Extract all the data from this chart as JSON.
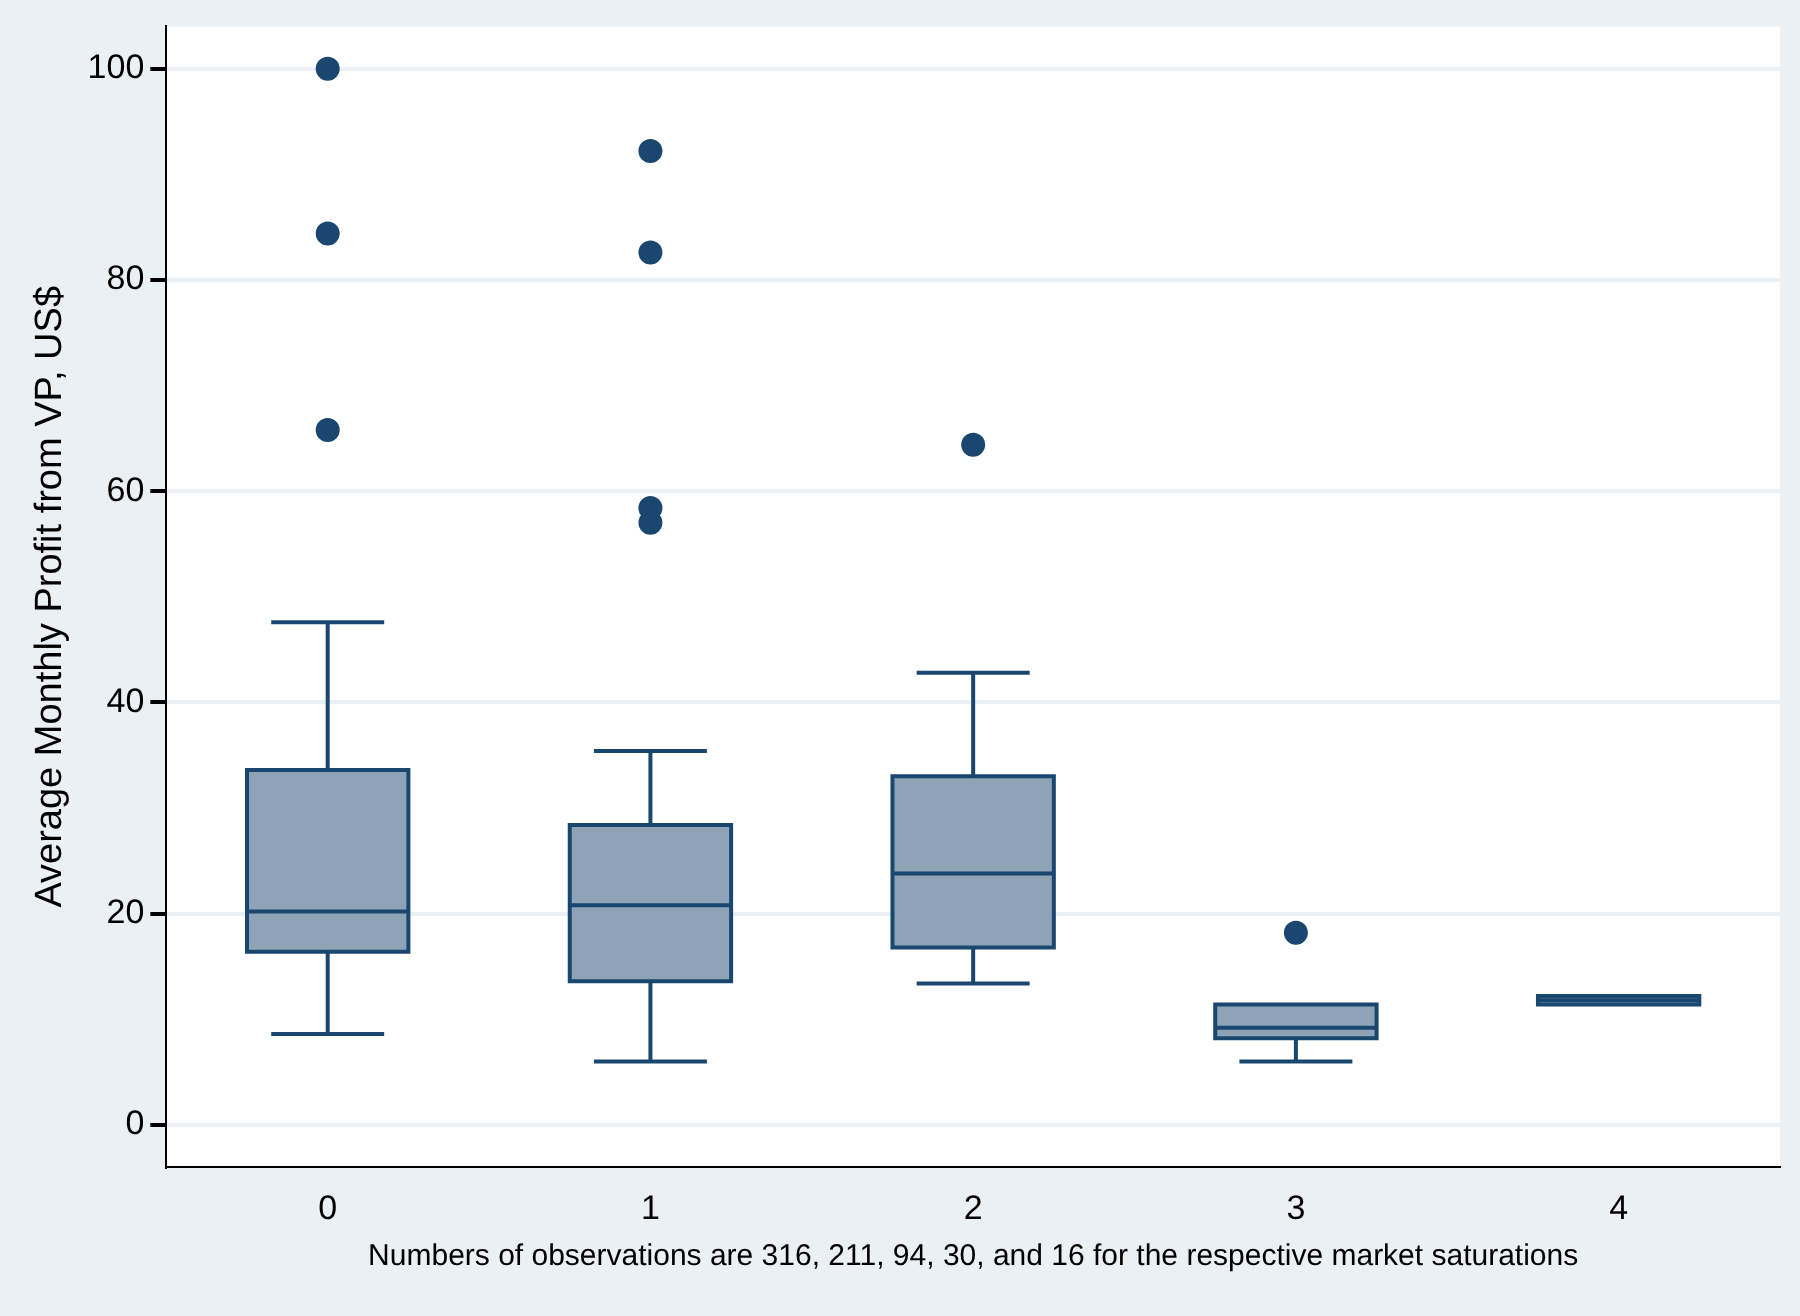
{
  "chart_data": {
    "type": "box",
    "ylabel": "Average Monthly Profit from VP, US$",
    "categories": [
      "0",
      "1",
      "2",
      "3",
      "4"
    ],
    "boxes": [
      {
        "low": 8.6,
        "q1": 16.4,
        "median": 20.2,
        "q3": 33.6,
        "high": 47.6,
        "outliers": [
          100,
          84.4,
          65.8
        ]
      },
      {
        "low": 6,
        "q1": 13.6,
        "median": 20.8,
        "q3": 28.4,
        "high": 35.4,
        "outliers": [
          92.2,
          82.6,
          58.4,
          57
        ]
      },
      {
        "low": 13.4,
        "q1": 16.8,
        "median": 23.8,
        "q3": 33,
        "high": 42.8,
        "outliers": [
          64.4
        ]
      },
      {
        "low": 6,
        "q1": 8.2,
        "median": 9.2,
        "q3": 11.4,
        "high": 11.4,
        "outliers": [
          18.2
        ]
      },
      {
        "low": 11.4,
        "q1": 11.4,
        "median": 11.8,
        "q3": 12.2,
        "high": 12.2
      }
    ],
    "color": "#8fa3b7",
    "ylim": [
      -4,
      104
    ],
    "yticks": [
      0,
      20,
      40,
      60,
      80,
      100
    ],
    "grid": "y",
    "legend": false,
    "annotations": [
      "Numbers of observations are 316, 211, 94, 30, and 16 for the respective market saturations"
    ]
  }
}
